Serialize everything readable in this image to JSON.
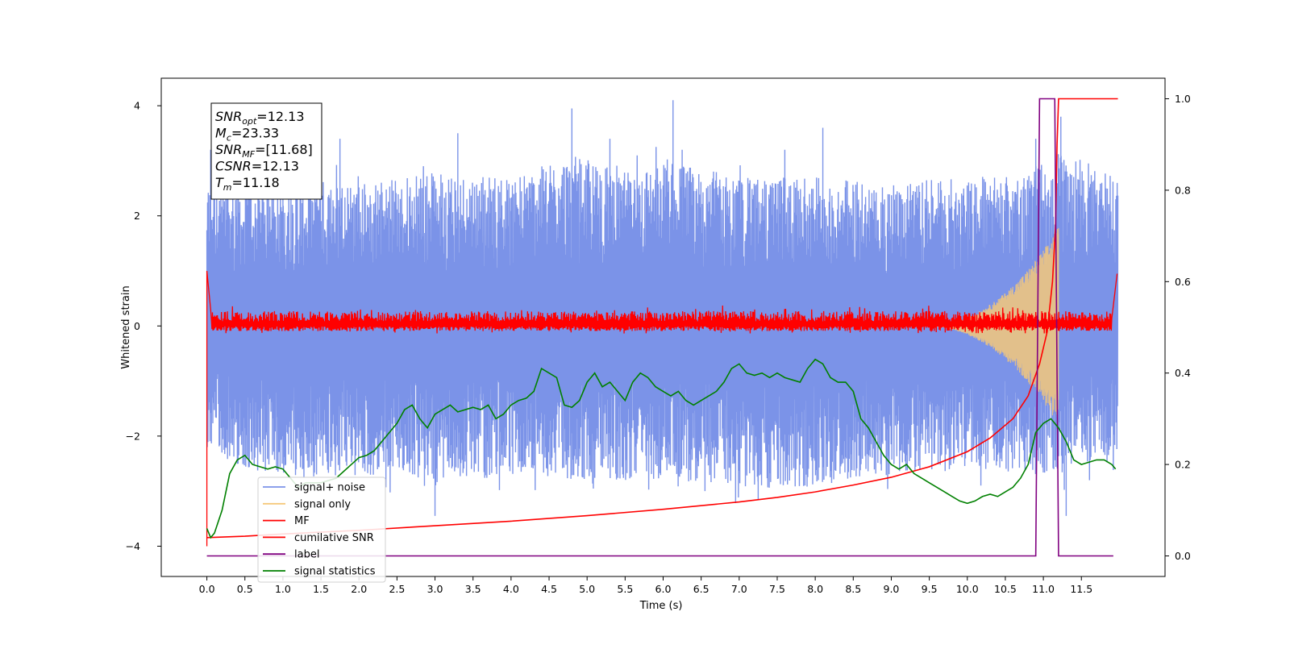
{
  "chart_data": {
    "type": "line",
    "xlabel": "Time (s)",
    "ylabel": "Whitened strain",
    "xlim": [
      -0.6,
      12.6
    ],
    "ylim": [
      -4.55,
      4.5
    ],
    "y2lim": [
      -0.045,
      1.045
    ],
    "x_ticks": [
      0.0,
      0.5,
      1.0,
      1.5,
      2.0,
      2.5,
      3.0,
      3.5,
      4.0,
      4.5,
      5.0,
      5.5,
      6.0,
      6.5,
      7.0,
      7.5,
      8.0,
      8.5,
      9.0,
      9.5,
      10.0,
      10.5,
      11.0,
      11.5
    ],
    "x_tick_labels": [
      "0.0",
      "0.5",
      "1.0",
      "1.5",
      "2.0",
      "2.5",
      "3.0",
      "3.5",
      "4.0",
      "4.5",
      "5.0",
      "5.5",
      "6.0",
      "6.5",
      "7.0",
      "7.5",
      "8.0",
      "8.5",
      "9.0",
      "9.5",
      "10.0",
      "10.5",
      "11.0",
      "11.5"
    ],
    "y_ticks": [
      -4,
      -2,
      0,
      2,
      4
    ],
    "y_tick_labels": [
      "−4",
      "−2",
      "0",
      "2",
      "4"
    ],
    "y2_ticks": [
      0.0,
      0.2,
      0.4,
      0.6,
      0.8,
      1.0
    ],
    "y2_tick_labels": [
      "0.0",
      "0.2",
      "0.4",
      "0.6",
      "0.8",
      "1.0"
    ],
    "grid": false,
    "legend_position": "lower-left",
    "annotation": {
      "lines": [
        {
          "main": "SNR",
          "sub": "opt",
          "rest": "=12.13"
        },
        {
          "main": "M",
          "sub": "c",
          "rest": "=23.33"
        },
        {
          "main": "SNR",
          "sub": "MF",
          "rest": "=[11.68]"
        },
        {
          "main": "CSNR",
          "sub": "",
          "rest": "=12.13"
        },
        {
          "main": "T",
          "sub": "m",
          "rest": "=11.18"
        }
      ]
    },
    "series": [
      {
        "name": "signal+ noise",
        "axis": "left",
        "color": "#7b93e8",
        "style": "noise",
        "x_range": [
          0.0,
          11.98
        ],
        "envelope_upper": [
          [
            0.0,
            2.6
          ],
          [
            0.5,
            2.6
          ],
          [
            1.0,
            2.7
          ],
          [
            2.0,
            2.6
          ],
          [
            3.0,
            2.8
          ],
          [
            4.0,
            2.7
          ],
          [
            4.8,
            3.1
          ],
          [
            5.5,
            2.8
          ],
          [
            6.1,
            3.0
          ],
          [
            7.0,
            2.7
          ],
          [
            8.0,
            2.7
          ],
          [
            9.0,
            2.6
          ],
          [
            10.0,
            2.7
          ],
          [
            10.8,
            2.8
          ],
          [
            11.2,
            3.2
          ],
          [
            11.98,
            2.7
          ]
        ],
        "envelope_lower": [
          [
            0.0,
            -2.2
          ],
          [
            0.5,
            -2.6
          ],
          [
            1.5,
            -2.8
          ],
          [
            2.5,
            -2.7
          ],
          [
            3.0,
            -2.9
          ],
          [
            4.0,
            -2.7
          ],
          [
            5.0,
            -2.8
          ],
          [
            6.0,
            -2.8
          ],
          [
            7.0,
            -2.9
          ],
          [
            7.5,
            -3.0
          ],
          [
            8.5,
            -2.8
          ],
          [
            9.0,
            -2.7
          ],
          [
            10.0,
            -2.6
          ],
          [
            11.0,
            -2.7
          ],
          [
            11.98,
            -2.3
          ]
        ],
        "spikes": [
          [
            0.05,
            3.2
          ],
          [
            1.0,
            3.4
          ],
          [
            1.75,
            3.4
          ],
          [
            3.0,
            -3.45
          ],
          [
            3.3,
            3.5
          ],
          [
            4.8,
            3.95
          ],
          [
            5.3,
            3.4
          ],
          [
            6.13,
            4.1
          ],
          [
            6.25,
            3.2
          ],
          [
            6.55,
            -3.0
          ],
          [
            7.25,
            -3.15
          ],
          [
            7.6,
            3.2
          ],
          [
            8.1,
            3.6
          ],
          [
            10.9,
            3.4
          ],
          [
            11.23,
            3.8
          ],
          [
            11.3,
            -3.45
          ]
        ]
      },
      {
        "name": "signal only",
        "axis": "left",
        "color": "#f5c87a",
        "style": "chirp",
        "x_range": [
          9.4,
          11.2
        ],
        "peak_amplitude": 1.8
      },
      {
        "name": "MF",
        "axis": "left",
        "color": "#ff0000",
        "style": "noise-small",
        "x_range": [
          0.0,
          11.98
        ],
        "edge_values": [
          [
            0.0,
            -4.0
          ],
          [
            0.0,
            1.0
          ],
          [
            0.05,
            0.3
          ],
          [
            11.97,
            0.95
          ]
        ],
        "amplitude": 0.25
      },
      {
        "name": "cumilative SNR",
        "axis": "right",
        "color": "#ff0000",
        "x": [
          0.0,
          0.5,
          1.0,
          2.0,
          3.0,
          4.0,
          5.0,
          6.0,
          7.0,
          7.5,
          8.0,
          8.5,
          9.0,
          9.5,
          10.0,
          10.3,
          10.6,
          10.8,
          10.95,
          11.05,
          11.12,
          11.16,
          11.18,
          11.2,
          11.98
        ],
        "values": [
          0.04,
          0.043,
          0.048,
          0.056,
          0.066,
          0.076,
          0.088,
          0.102,
          0.118,
          0.128,
          0.14,
          0.155,
          0.172,
          0.195,
          0.228,
          0.258,
          0.3,
          0.35,
          0.42,
          0.49,
          0.6,
          0.72,
          0.9,
          1.0,
          1.0
        ]
      },
      {
        "name": "label",
        "axis": "right",
        "color": "#800080",
        "x": [
          0.0,
          10.9,
          10.95,
          11.15,
          11.2,
          11.92
        ],
        "values": [
          0.0,
          0.0,
          1.0,
          1.0,
          0.0,
          0.0
        ]
      },
      {
        "name": "signal statistics",
        "axis": "right",
        "color": "#008000",
        "x": [
          0.0,
          0.05,
          0.1,
          0.2,
          0.3,
          0.4,
          0.5,
          0.6,
          0.8,
          0.9,
          1.0,
          1.1,
          1.2,
          1.3,
          1.5,
          1.7,
          1.9,
          2.0,
          2.1,
          2.2,
          2.3,
          2.4,
          2.5,
          2.6,
          2.7,
          2.8,
          2.9,
          3.0,
          3.1,
          3.2,
          3.3,
          3.4,
          3.5,
          3.6,
          3.7,
          3.8,
          3.9,
          4.0,
          4.1,
          4.2,
          4.3,
          4.4,
          4.5,
          4.6,
          4.7,
          4.8,
          4.9,
          5.0,
          5.1,
          5.2,
          5.3,
          5.4,
          5.5,
          5.6,
          5.7,
          5.8,
          5.9,
          6.0,
          6.1,
          6.2,
          6.3,
          6.4,
          6.5,
          6.6,
          6.7,
          6.8,
          6.9,
          7.0,
          7.1,
          7.2,
          7.3,
          7.4,
          7.5,
          7.6,
          7.7,
          7.8,
          7.9,
          8.0,
          8.1,
          8.2,
          8.3,
          8.4,
          8.5,
          8.6,
          8.7,
          8.8,
          8.9,
          9.0,
          9.1,
          9.2,
          9.3,
          9.4,
          9.5,
          9.6,
          9.7,
          9.8,
          9.9,
          10.0,
          10.1,
          10.2,
          10.3,
          10.4,
          10.5,
          10.6,
          10.7,
          10.8,
          10.9,
          11.0,
          11.1,
          11.2,
          11.3,
          11.4,
          11.5,
          11.6,
          11.7,
          11.8,
          11.9,
          11.95
        ],
        "values": [
          0.06,
          0.04,
          0.05,
          0.1,
          0.18,
          0.21,
          0.22,
          0.2,
          0.19,
          0.195,
          0.19,
          0.17,
          0.15,
          0.16,
          0.16,
          0.17,
          0.2,
          0.215,
          0.22,
          0.23,
          0.25,
          0.27,
          0.29,
          0.32,
          0.33,
          0.3,
          0.28,
          0.31,
          0.32,
          0.33,
          0.315,
          0.32,
          0.325,
          0.32,
          0.33,
          0.3,
          0.31,
          0.33,
          0.34,
          0.345,
          0.36,
          0.41,
          0.4,
          0.39,
          0.33,
          0.325,
          0.34,
          0.38,
          0.4,
          0.37,
          0.38,
          0.36,
          0.34,
          0.38,
          0.4,
          0.39,
          0.37,
          0.36,
          0.35,
          0.36,
          0.34,
          0.33,
          0.34,
          0.35,
          0.36,
          0.38,
          0.41,
          0.42,
          0.4,
          0.395,
          0.4,
          0.39,
          0.4,
          0.39,
          0.385,
          0.38,
          0.41,
          0.43,
          0.42,
          0.39,
          0.38,
          0.38,
          0.36,
          0.3,
          0.28,
          0.25,
          0.22,
          0.2,
          0.19,
          0.2,
          0.18,
          0.17,
          0.16,
          0.15,
          0.14,
          0.13,
          0.12,
          0.115,
          0.12,
          0.13,
          0.135,
          0.13,
          0.14,
          0.15,
          0.17,
          0.2,
          0.27,
          0.29,
          0.3,
          0.28,
          0.25,
          0.21,
          0.2,
          0.205,
          0.21,
          0.21,
          0.2,
          0.19
        ]
      }
    ]
  }
}
